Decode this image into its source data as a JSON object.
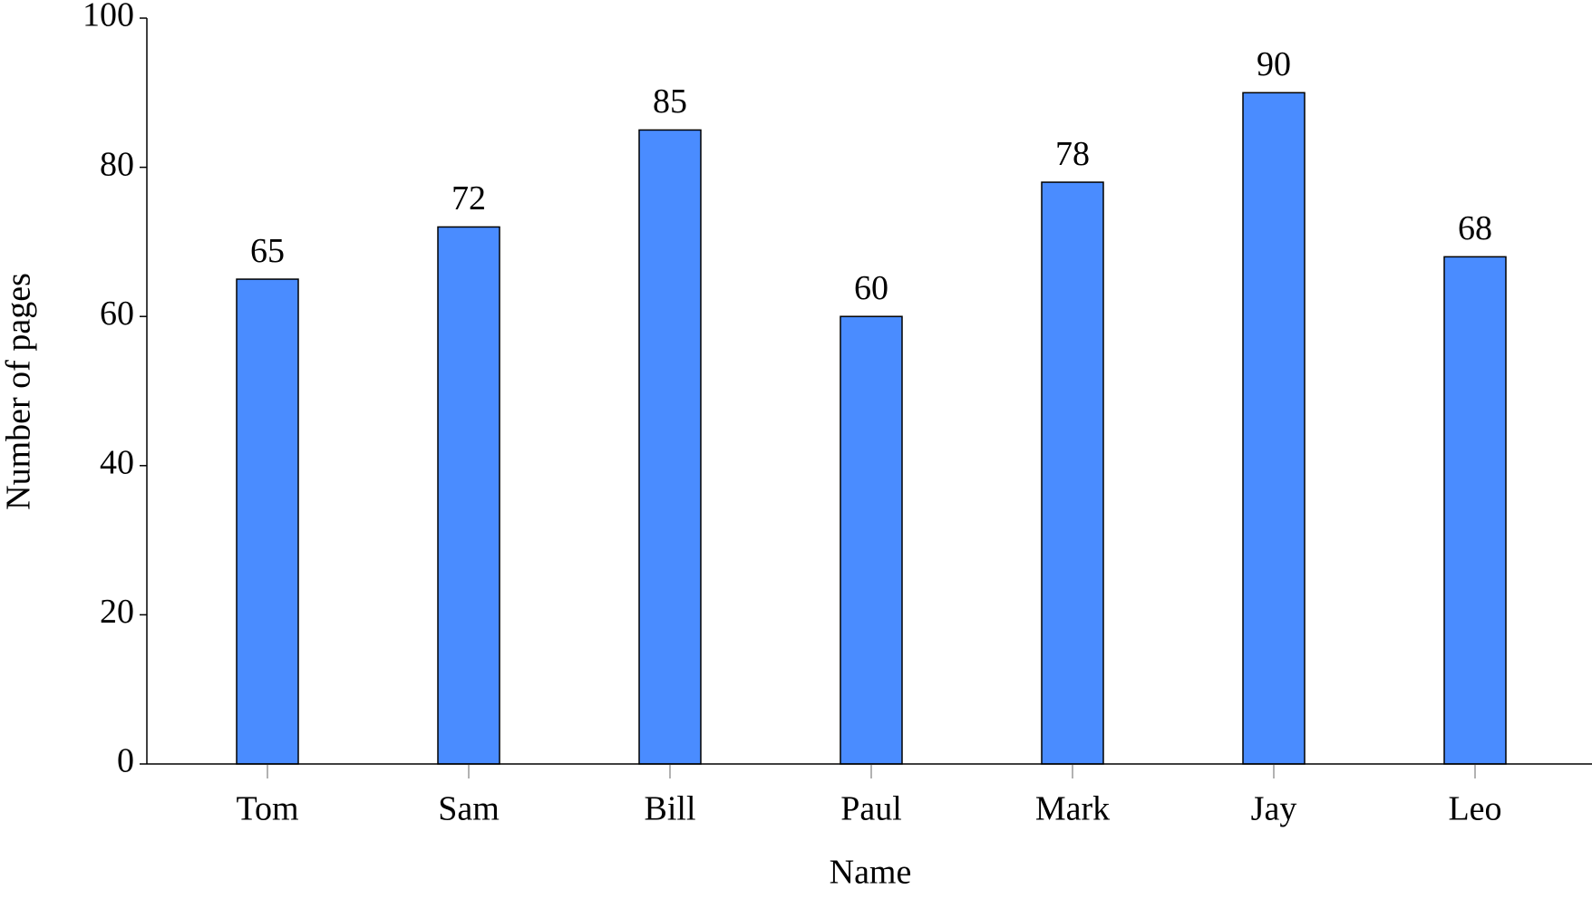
{
  "chart_data": {
    "type": "bar",
    "categories": [
      "Tom",
      "Sam",
      "Bill",
      "Paul",
      "Mark",
      "Jay",
      "Leo"
    ],
    "values": [
      65,
      72,
      85,
      60,
      78,
      90,
      68
    ],
    "color": "#4a8cff",
    "x_label": "Name",
    "y_label": "Number of pages",
    "ylim": [
      0,
      100
    ],
    "yticks": [
      0,
      20,
      40,
      60,
      80,
      100
    ],
    "grid": false
  }
}
